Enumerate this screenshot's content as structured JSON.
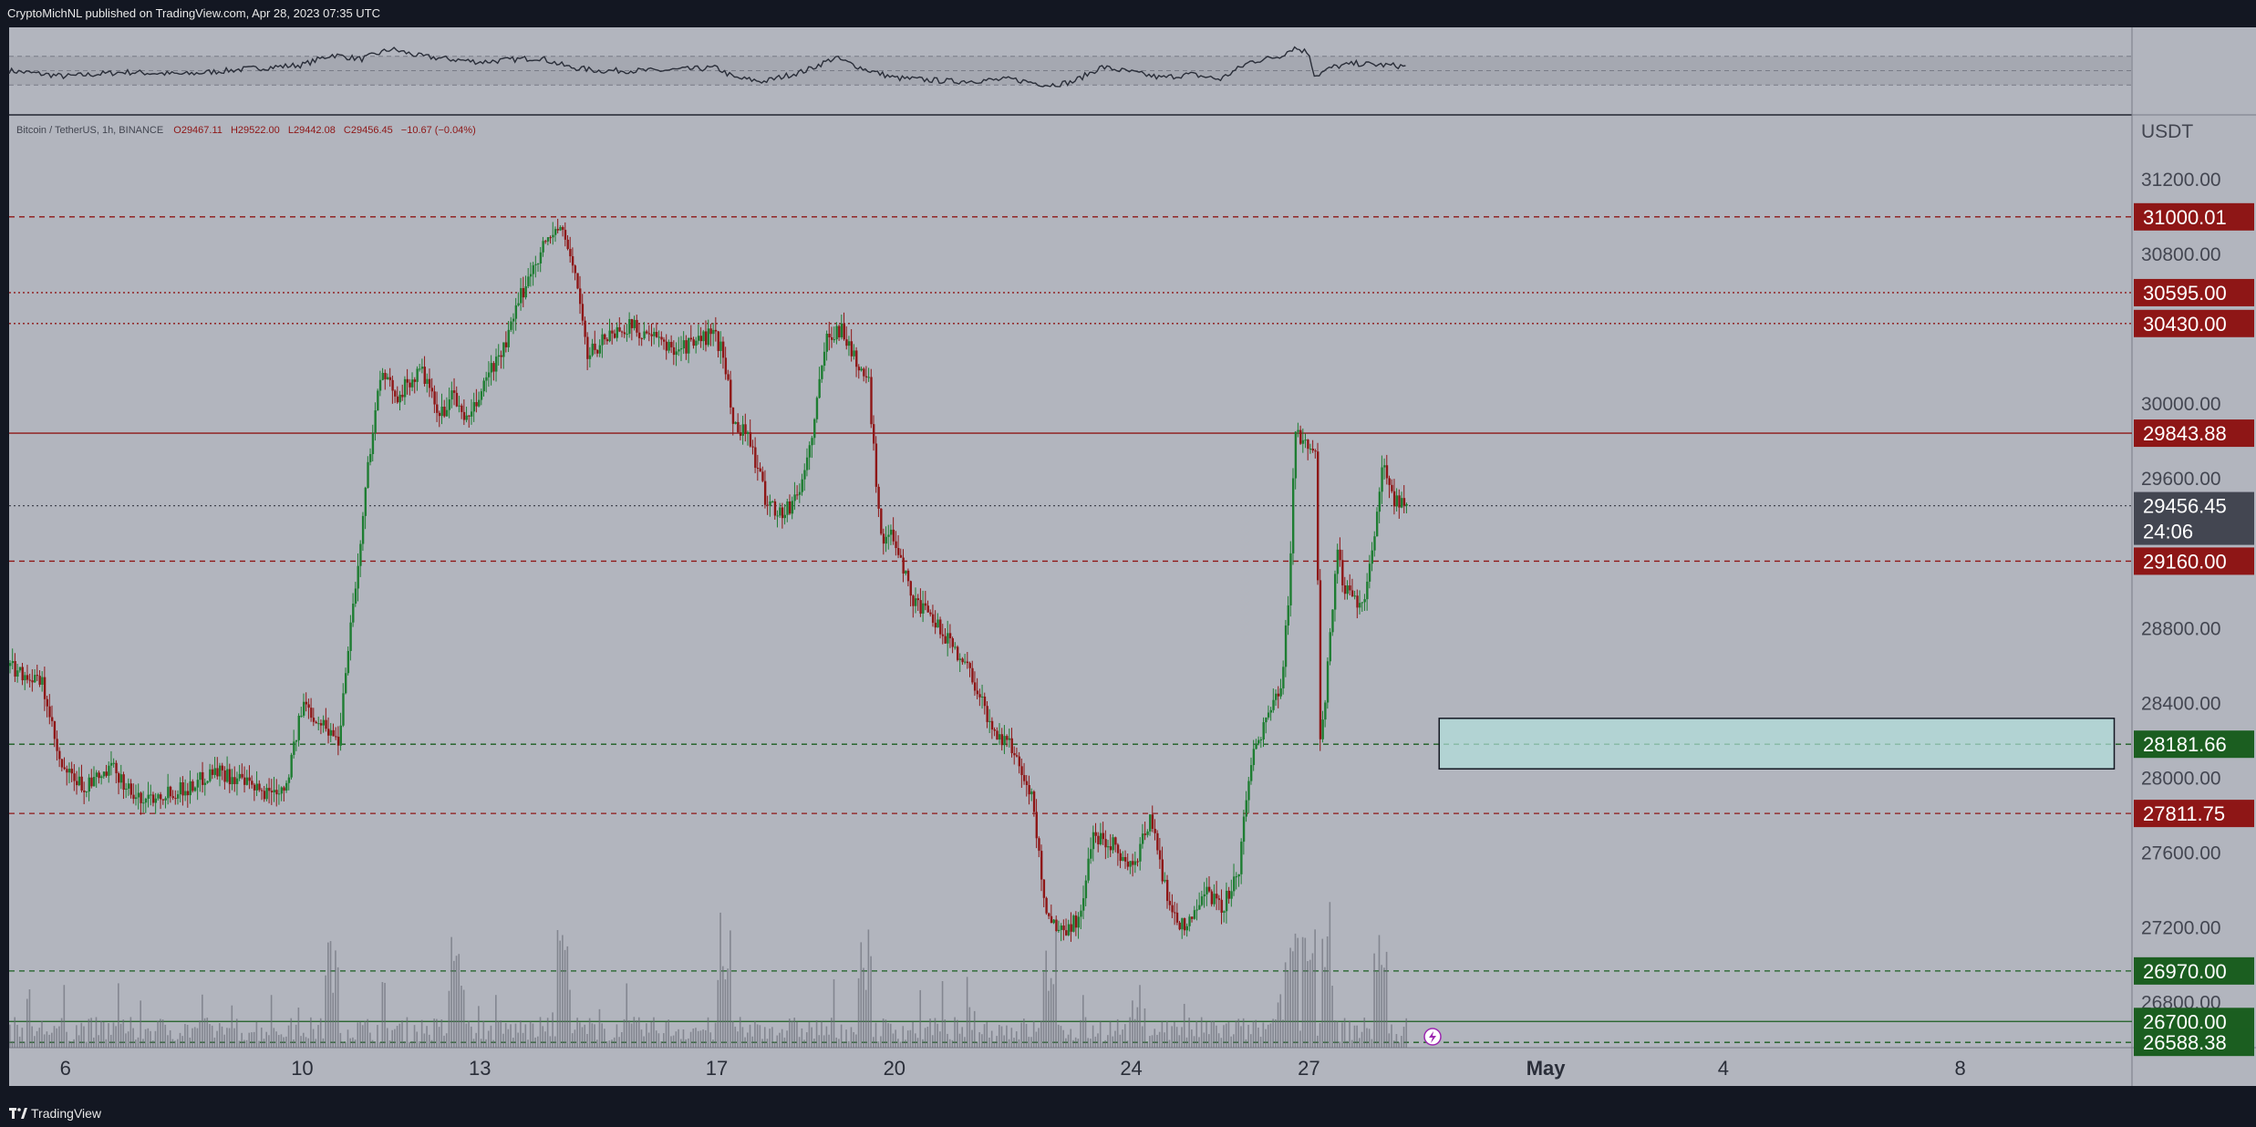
{
  "header": {
    "publisher_line": "CryptoMichNL published on TradingView.com, Apr 28, 2023 07:35 UTC"
  },
  "footer": {
    "brand": "TradingView"
  },
  "symbol": {
    "title": "Bitcoin / TetherUS, 1h, BINANCE",
    "open": "O29467.11",
    "high": "H29522.00",
    "low": "L29442.08",
    "close": "C29456.45",
    "change": "−10.67 (−0.04%)"
  },
  "axis": {
    "currency": "USDT",
    "countdown": "24:06"
  },
  "colors": {
    "background": "#b2b5be",
    "frame": "#131722",
    "up": "#1e7d32",
    "down": "#8e1616",
    "resistance": "#8e1616",
    "support": "#1b5e20",
    "current_price": "#434651",
    "zone_fill": "#b2dfdb"
  },
  "chart_data": {
    "type": "candlestick",
    "symbol": "Bitcoin / TetherUS",
    "exchange": "BINANCE",
    "interval": "1h",
    "ylim": [
      26560,
      31540
    ],
    "y_ticks": [
      31200,
      30800,
      30000,
      29600,
      28800,
      28400,
      28000,
      27600,
      27200,
      26800
    ],
    "y_tick_labels": [
      "31200.00",
      "30800.00",
      "30000.00",
      "29600.00",
      "28800.00",
      "28400.00",
      "28000.00",
      "27600.00",
      "27200.00",
      "26800.00"
    ],
    "x_ticks": [
      {
        "label": "6",
        "day": 6
      },
      {
        "label": "10",
        "day": 10
      },
      {
        "label": "13",
        "day": 13
      },
      {
        "label": "17",
        "day": 17
      },
      {
        "label": "20",
        "day": 20
      },
      {
        "label": "24",
        "day": 24
      },
      {
        "label": "27",
        "day": 27
      },
      {
        "label": "May",
        "day": 31
      },
      {
        "label": "4",
        "day": 34
      },
      {
        "label": "8",
        "day": 38
      }
    ],
    "xlim_days": [
      5.05,
      40.9
    ],
    "price_path": [
      [
        5.05,
        28600
      ],
      [
        5.6,
        28500
      ],
      [
        5.9,
        28050
      ],
      [
        6.3,
        27950
      ],
      [
        6.8,
        28050
      ],
      [
        7.2,
        27880
      ],
      [
        7.6,
        27920
      ],
      [
        8.1,
        27950
      ],
      [
        8.5,
        28050
      ],
      [
        8.9,
        27990
      ],
      [
        9.3,
        27920
      ],
      [
        9.7,
        27960
      ],
      [
        10.0,
        28400
      ],
      [
        10.3,
        28300
      ],
      [
        10.6,
        28200
      ],
      [
        10.75,
        28700
      ],
      [
        10.95,
        29200
      ],
      [
        11.1,
        29700
      ],
      [
        11.3,
        30150
      ],
      [
        11.6,
        30050
      ],
      [
        12.0,
        30180
      ],
      [
        12.3,
        29920
      ],
      [
        12.5,
        30050
      ],
      [
        12.8,
        29900
      ],
      [
        13.1,
        30150
      ],
      [
        13.4,
        30300
      ],
      [
        13.7,
        30600
      ],
      [
        14.0,
        30820
      ],
      [
        14.3,
        30950
      ],
      [
        14.45,
        30850
      ],
      [
        14.6,
        30700
      ],
      [
        14.8,
        30250
      ],
      [
        15.1,
        30360
      ],
      [
        15.5,
        30420
      ],
      [
        15.9,
        30350
      ],
      [
        16.2,
        30300
      ],
      [
        16.6,
        30320
      ],
      [
        16.9,
        30380
      ],
      [
        17.1,
        30280
      ],
      [
        17.25,
        29900
      ],
      [
        17.5,
        29850
      ],
      [
        17.8,
        29500
      ],
      [
        18.1,
        29400
      ],
      [
        18.4,
        29550
      ],
      [
        18.6,
        29850
      ],
      [
        18.85,
        30380
      ],
      [
        19.1,
        30400
      ],
      [
        19.3,
        30250
      ],
      [
        19.55,
        30100
      ],
      [
        19.75,
        29300
      ],
      [
        20.0,
        29280
      ],
      [
        20.3,
        28950
      ],
      [
        20.6,
        28850
      ],
      [
        21.0,
        28700
      ],
      [
        21.3,
        28550
      ],
      [
        21.6,
        28280
      ],
      [
        22.0,
        28150
      ],
      [
        22.3,
        27900
      ],
      [
        22.55,
        27280
      ],
      [
        22.8,
        27180
      ],
      [
        23.1,
        27250
      ],
      [
        23.35,
        27700
      ],
      [
        23.7,
        27650
      ],
      [
        24.0,
        27500
      ],
      [
        24.3,
        27800
      ],
      [
        24.6,
        27350
      ],
      [
        24.9,
        27180
      ],
      [
        25.2,
        27420
      ],
      [
        25.5,
        27300
      ],
      [
        25.8,
        27500
      ],
      [
        26.0,
        28100
      ],
      [
        26.3,
        28350
      ],
      [
        26.5,
        28450
      ],
      [
        26.65,
        29000
      ],
      [
        26.75,
        29900
      ],
      [
        26.95,
        29750
      ],
      [
        27.1,
        29700
      ],
      [
        27.18,
        28150
      ],
      [
        27.3,
        28600
      ],
      [
        27.45,
        29200
      ],
      [
        27.6,
        29000
      ],
      [
        27.85,
        28900
      ],
      [
        28.0,
        29100
      ],
      [
        28.15,
        29450
      ],
      [
        28.25,
        29700
      ],
      [
        28.4,
        29500
      ],
      [
        28.55,
        29480
      ],
      [
        28.65,
        29456.45
      ]
    ],
    "price_path_note": "Hourly candlesticks follow this approximate close trajectory (day-of-month, price) from Apr 5 to Apr 28, 2023; highs reach ~31000 on Apr 14 and lows ~27020 on Apr 24.",
    "volume_spikes": [
      10.5,
      12.6,
      14.4,
      17.1,
      19.5,
      22.6,
      26.7,
      27.0,
      27.3,
      28.2
    ],
    "rsi_path": [
      [
        5.05,
        50
      ],
      [
        6.0,
        42
      ],
      [
        7.0,
        48
      ],
      [
        8.0,
        45
      ],
      [
        9.0,
        52
      ],
      [
        10.0,
        58
      ],
      [
        10.5,
        72
      ],
      [
        11.0,
        66
      ],
      [
        11.5,
        80
      ],
      [
        12.0,
        70
      ],
      [
        13.0,
        62
      ],
      [
        14.0,
        68
      ],
      [
        14.5,
        55
      ],
      [
        15.0,
        50
      ],
      [
        16.0,
        50
      ],
      [
        17.0,
        54
      ],
      [
        17.3,
        40
      ],
      [
        17.8,
        35
      ],
      [
        18.5,
        50
      ],
      [
        19.0,
        68
      ],
      [
        19.5,
        52
      ],
      [
        20.0,
        40
      ],
      [
        21.0,
        35
      ],
      [
        22.0,
        38
      ],
      [
        22.6,
        30
      ],
      [
        23.0,
        34
      ],
      [
        23.5,
        55
      ],
      [
        24.0,
        48
      ],
      [
        24.5,
        40
      ],
      [
        25.0,
        45
      ],
      [
        25.5,
        38
      ],
      [
        26.0,
        62
      ],
      [
        26.5,
        70
      ],
      [
        26.75,
        82
      ],
      [
        27.0,
        75
      ],
      [
        27.1,
        42
      ],
      [
        27.4,
        55
      ],
      [
        27.8,
        60
      ],
      [
        28.2,
        58
      ],
      [
        28.65,
        56
      ]
    ],
    "horizontal_levels": [
      {
        "price": 31000.01,
        "label": "31000.01",
        "style": "dashed",
        "kind": "resistance"
      },
      {
        "price": 30595.0,
        "label": "30595.00",
        "style": "dotted",
        "kind": "resistance"
      },
      {
        "price": 30430.0,
        "label": "30430.00",
        "style": "dotted",
        "kind": "resistance"
      },
      {
        "price": 29843.88,
        "label": "29843.88",
        "style": "solid",
        "kind": "resistance"
      },
      {
        "price": 29456.45,
        "label": "29456.45",
        "style": "dotted",
        "kind": "current"
      },
      {
        "price": 29160.0,
        "label": "29160.00",
        "style": "dashed",
        "kind": "resistance"
      },
      {
        "price": 28181.66,
        "label": "28181.66",
        "style": "dashed",
        "kind": "support"
      },
      {
        "price": 27811.75,
        "label": "27811.75",
        "style": "dashed",
        "kind": "resistance"
      },
      {
        "price": 26970.0,
        "label": "26970.00",
        "style": "dashed",
        "kind": "support"
      },
      {
        "price": 26700.0,
        "label": "26700.00",
        "style": "solid",
        "kind": "support"
      },
      {
        "price": 26588.38,
        "label": "26588.38",
        "style": "dashed",
        "kind": "support"
      }
    ],
    "zone": {
      "price_top": 28320,
      "price_bottom": 28050,
      "day_start": 29.2,
      "day_end": 40.6
    }
  }
}
